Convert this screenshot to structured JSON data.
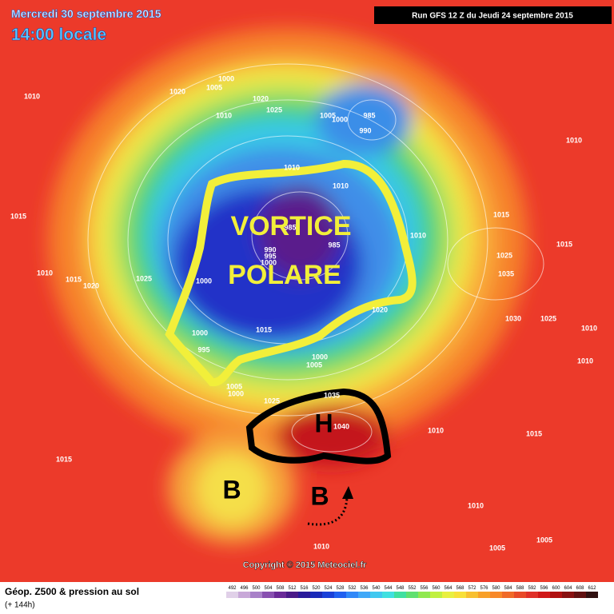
{
  "header": {
    "date": "Mercredi 30 septembre 2015",
    "time": "14:00 locale",
    "run": "Run GFS 12 Z du Jeudi 24 septembre 2015"
  },
  "annotations": {
    "vortex": [
      "VORTICE",
      "POLARE"
    ],
    "high": "H",
    "lows": [
      "B",
      "B"
    ]
  },
  "isobar_labels": [
    1010,
    1020,
    1000,
    1005,
    1010,
    1020,
    1025,
    985,
    1005,
    1000,
    990,
    1010,
    1010,
    1010,
    1015,
    1015,
    1015,
    1025,
    1035,
    1010,
    1010,
    1015,
    1020,
    1025,
    985,
    985,
    990,
    995,
    1000,
    1000,
    1000,
    995,
    1015,
    1020,
    1000,
    1005,
    1005,
    1000,
    1025,
    1035,
    1040,
    1010,
    1015,
    1015,
    1030,
    1025,
    1010,
    1010,
    1010,
    1010,
    1005,
    1005
  ],
  "copyright": "Copyright © 2015 Meteociel.fr",
  "footer": {
    "title": "Géop. Z500 & pression au sol",
    "lead": "(+ 144h)"
  },
  "legend": {
    "levels": [
      492,
      496,
      500,
      504,
      508,
      512,
      516,
      520,
      524,
      528,
      532,
      536,
      540,
      544,
      548,
      552,
      556,
      560,
      564,
      568,
      572,
      576,
      580,
      584,
      588,
      592,
      596,
      600,
      604,
      608,
      612
    ],
    "colors": [
      "#e0d0e8",
      "#c8a8d8",
      "#a880c8",
      "#8850b0",
      "#6a2a98",
      "#4a1a88",
      "#2a1a9a",
      "#1a2ab8",
      "#1a40d8",
      "#2060f0",
      "#3088f8",
      "#40a8f8",
      "#40c8f0",
      "#40e0e0",
      "#40e0a0",
      "#60e070",
      "#90e850",
      "#c0f040",
      "#e8f040",
      "#f8e038",
      "#f8c030",
      "#f8a028",
      "#f88828",
      "#f06a28",
      "#e84a28",
      "#e03028",
      "#d01818",
      "#b01010",
      "#881010",
      "#601010",
      "#301010"
    ]
  }
}
